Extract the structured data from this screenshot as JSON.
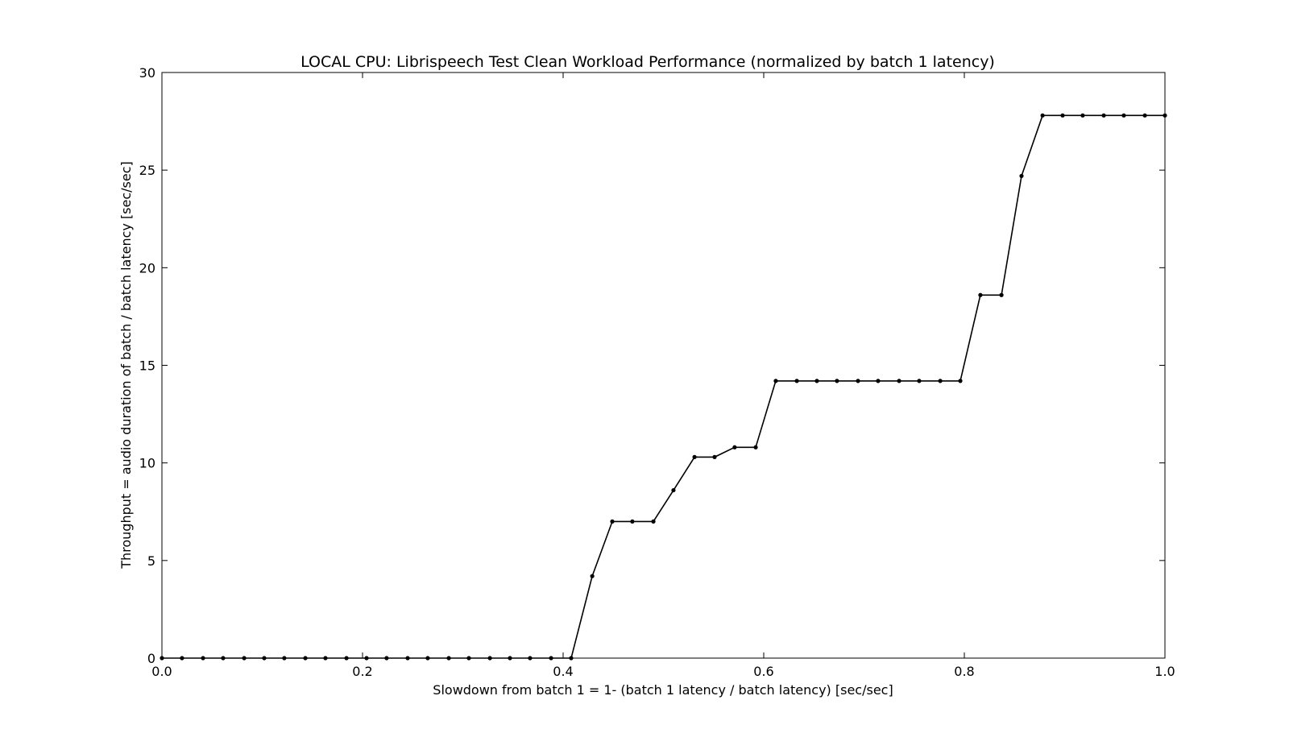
{
  "chart_data": {
    "type": "line",
    "title": "LOCAL CPU: Librispeech Test Clean Workload Performance (normalized by batch 1 latency)",
    "xlabel": "Slowdown from batch 1 = 1- (batch 1 latency / batch latency) [sec/sec]",
    "ylabel": "Throughput = audio duration of batch / batch latency [sec/sec]",
    "xlim": [
      0.0,
      1.0
    ],
    "ylim": [
      0,
      30
    ],
    "xticks": [
      "0.0",
      "0.2",
      "0.4",
      "0.6",
      "0.8",
      "1.0"
    ],
    "yticks": [
      "0",
      "5",
      "10",
      "15",
      "20",
      "25",
      "30"
    ],
    "grid": false,
    "line_color": "#000000",
    "series": [
      {
        "x": [
          0.0,
          0.02,
          0.041,
          0.061,
          0.082,
          0.102,
          0.122,
          0.143,
          0.163,
          0.184,
          0.204,
          0.224,
          0.245,
          0.265,
          0.286,
          0.306,
          0.327,
          0.347,
          0.367,
          0.388,
          0.408,
          0.429,
          0.449,
          0.469,
          0.49,
          0.51,
          0.531,
          0.551,
          0.571,
          0.592,
          0.612,
          0.633,
          0.653,
          0.673,
          0.694,
          0.714,
          0.735,
          0.755,
          0.776,
          0.796,
          0.816,
          0.837,
          0.857,
          0.878,
          0.898,
          0.918,
          0.939,
          0.959,
          0.98,
          1.0
        ],
        "y": [
          0,
          0,
          0,
          0,
          0,
          0,
          0,
          0,
          0,
          0,
          0,
          0,
          0,
          0,
          0,
          0,
          0,
          0,
          0,
          0,
          0,
          4.2,
          7.0,
          7.0,
          7.0,
          8.6,
          10.3,
          10.3,
          10.8,
          10.8,
          14.2,
          14.2,
          14.2,
          14.2,
          14.2,
          14.2,
          14.2,
          14.2,
          14.2,
          14.2,
          18.6,
          18.6,
          24.7,
          27.8,
          27.8,
          27.8,
          27.8,
          27.8,
          27.8,
          27.8
        ]
      }
    ]
  }
}
